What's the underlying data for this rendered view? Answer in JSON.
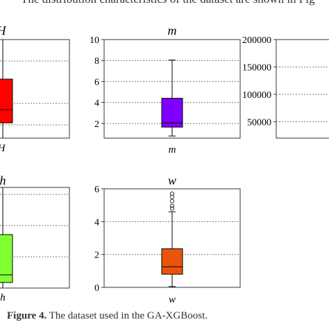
{
  "intro_text": "The distribution characteristics of the dataset are shown in Fig",
  "caption": {
    "label": "Figure 4.",
    "text": " The dataset used in the GA-XGBoost."
  },
  "colors": {
    "H": "#ff0000",
    "m": "#8000ff",
    "h": "#80ff33",
    "w": "#e8540c"
  },
  "chart_data": [
    {
      "type": "box",
      "title": "H",
      "xlabel": "H",
      "ylim": [
        null,
        null
      ],
      "yticks": [],
      "box": {
        "whisker_low": null,
        "q1": null,
        "median": null,
        "q3": null,
        "whisker_high": null
      }
    },
    {
      "type": "box",
      "title": "m",
      "xlabel": "m",
      "ylim": [
        0.6,
        10
      ],
      "yticks": [
        "2",
        "4",
        "6",
        "8",
        "10"
      ],
      "box": {
        "whisker_low": 0.8,
        "q1": 1.65,
        "median": 2.05,
        "q3": 4.4,
        "whisker_high": 8.05
      }
    },
    {
      "type": "box",
      "title": "",
      "xlabel": "",
      "ylim": [
        20000,
        200000
      ],
      "yticks": [
        "50000",
        "100000",
        "150000",
        "200000"
      ],
      "box": null
    },
    {
      "type": "box",
      "title": "h",
      "xlabel": "h",
      "ylim": [
        null,
        null
      ],
      "yticks": [],
      "box": {
        "whisker_low": null,
        "q1": null,
        "median": null,
        "q3": null,
        "whisker_high": null
      }
    },
    {
      "type": "box",
      "title": "w",
      "xlabel": "w",
      "ylim": [
        0,
        6
      ],
      "yticks": [
        "0",
        "2",
        "4",
        "6"
      ],
      "box": {
        "whisker_low": 0.05,
        "q1": 0.8,
        "median": 1.25,
        "q3": 2.35,
        "whisker_high": 4.6
      },
      "outliers": [
        4.8,
        4.95,
        5.25,
        5.5,
        5.7
      ]
    }
  ]
}
